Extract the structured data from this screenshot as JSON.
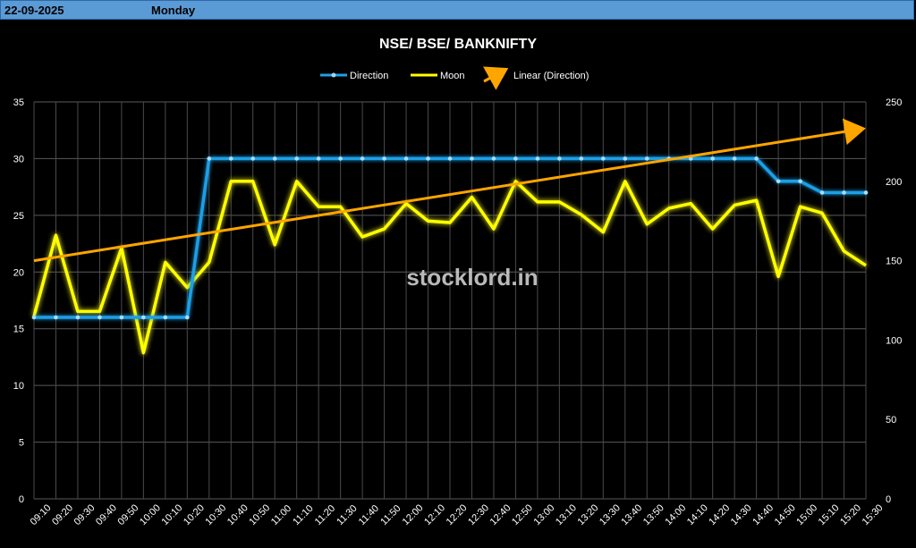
{
  "header": {
    "date": "22-09-2025",
    "day": "Monday"
  },
  "watermark": "stocklord.in",
  "chart_data": {
    "type": "line",
    "title": "NSE/ BSE/ BANKNIFTY",
    "categories": [
      "09:10",
      "09:20",
      "09:30",
      "09:40",
      "09:50",
      "10:00",
      "10:10",
      "10:20",
      "10:30",
      "10:40",
      "10:50",
      "11:00",
      "11:10",
      "11:20",
      "11:30",
      "11:40",
      "11:50",
      "12:00",
      "12:10",
      "12:20",
      "12:30",
      "12:40",
      "12:50",
      "13:00",
      "13:10",
      "13:20",
      "13:30",
      "13:40",
      "13:50",
      "14:00",
      "14:10",
      "14:20",
      "14:30",
      "14:40",
      "14:50",
      "15:00",
      "15:10",
      "15:20",
      "15:30"
    ],
    "series": [
      {
        "name": "Direction",
        "axis": "left",
        "color": "#1f9fe6",
        "values": [
          16,
          16,
          16,
          16,
          16,
          16,
          16,
          16,
          30,
          30,
          30,
          30,
          30,
          30,
          30,
          30,
          30,
          30,
          30,
          30,
          30,
          30,
          30,
          30,
          30,
          30,
          30,
          30,
          30,
          30,
          30,
          30,
          30,
          30,
          28,
          28,
          27,
          27,
          27
        ]
      },
      {
        "name": "Moon",
        "axis": "right",
        "color": "#ffff00",
        "values": [
          115,
          166,
          118,
          118,
          158,
          92,
          149,
          133,
          149,
          200,
          200,
          160,
          200,
          184,
          184,
          165,
          170,
          186,
          175,
          174,
          190,
          170,
          200,
          187,
          187,
          179,
          168,
          200,
          173,
          183,
          186,
          170,
          185,
          188,
          140,
          184,
          180,
          156,
          147
        ]
      }
    ],
    "trendline": {
      "name": "Linear (Direction)",
      "color": "#ffa500",
      "start": 21,
      "end": 32.6
    },
    "y_left": {
      "min": 0,
      "max": 35,
      "ticks": [
        0,
        5,
        10,
        15,
        20,
        25,
        30,
        35
      ]
    },
    "y_right": {
      "min": 0,
      "max": 250,
      "ticks": [
        0,
        50,
        100,
        150,
        200,
        250
      ]
    },
    "grid": true,
    "legend_position": "top"
  }
}
